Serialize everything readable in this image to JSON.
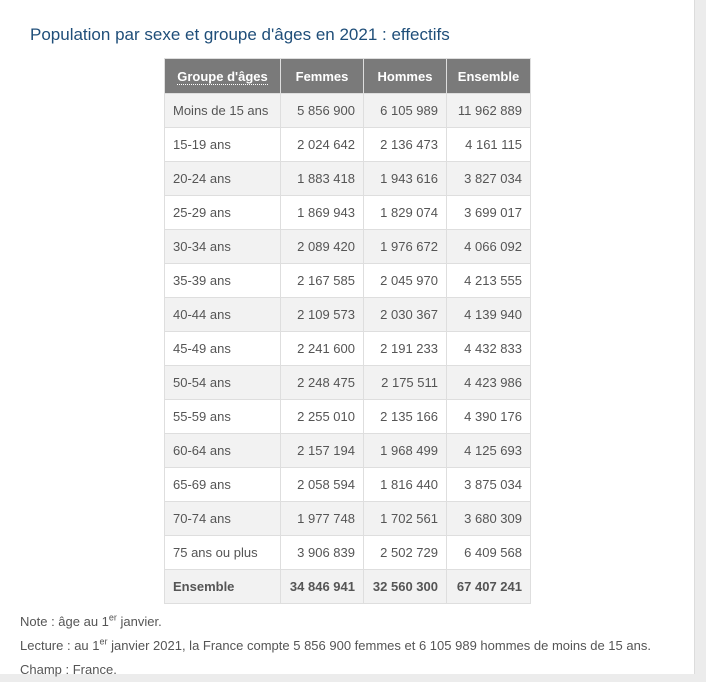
{
  "title": "Population par sexe et groupe d'âges en 2021 : effectifs",
  "table": {
    "headers": [
      "Groupe d'âges",
      "Femmes",
      "Hommes",
      "Ensemble"
    ],
    "rows": [
      [
        "Moins de 15 ans",
        "5 856 900",
        "6 105 989",
        "11 962 889"
      ],
      [
        "15-19 ans",
        "2 024 642",
        "2 136 473",
        "4 161 115"
      ],
      [
        "20-24 ans",
        "1 883 418",
        "1 943 616",
        "3 827 034"
      ],
      [
        "25-29 ans",
        "1 869 943",
        "1 829 074",
        "3 699 017"
      ],
      [
        "30-34 ans",
        "2 089 420",
        "1 976 672",
        "4 066 092"
      ],
      [
        "35-39 ans",
        "2 167 585",
        "2 045 970",
        "4 213 555"
      ],
      [
        "40-44 ans",
        "2 109 573",
        "2 030 367",
        "4 139 940"
      ],
      [
        "45-49 ans",
        "2 241 600",
        "2 191 233",
        "4 432 833"
      ],
      [
        "50-54 ans",
        "2 248 475",
        "2 175 511",
        "4 423 986"
      ],
      [
        "55-59 ans",
        "2 255 010",
        "2 135 166",
        "4 390 176"
      ],
      [
        "60-64 ans",
        "2 157 194",
        "1 968 499",
        "4 125 693"
      ],
      [
        "65-69 ans",
        "2 058 594",
        "1 816 440",
        "3 875 034"
      ],
      [
        "70-74 ans",
        "1 977 748",
        "1 702 561",
        "3 680 309"
      ],
      [
        "75 ans ou plus",
        "3 906 839",
        "2 502 729",
        "6 409 568"
      ]
    ],
    "total": [
      "Ensemble",
      "34 846 941",
      "32 560 300",
      "67 407 241"
    ]
  },
  "notes": {
    "note_prefix": "Note : âge au 1",
    "note_sup": "er",
    "note_suffix": " janvier.",
    "lecture_prefix": "Lecture : au 1",
    "lecture_sup": "er",
    "lecture_suffix": " janvier 2021, la France compte 5 856 900 femmes et 6 105 989 hommes de moins de 15 ans.",
    "champ": "Champ : France."
  },
  "colors": {
    "title": "#1f4e79",
    "header_bg": "#7a7a7a",
    "row_alt_bg": "#f2f2f2",
    "text": "#555555"
  }
}
